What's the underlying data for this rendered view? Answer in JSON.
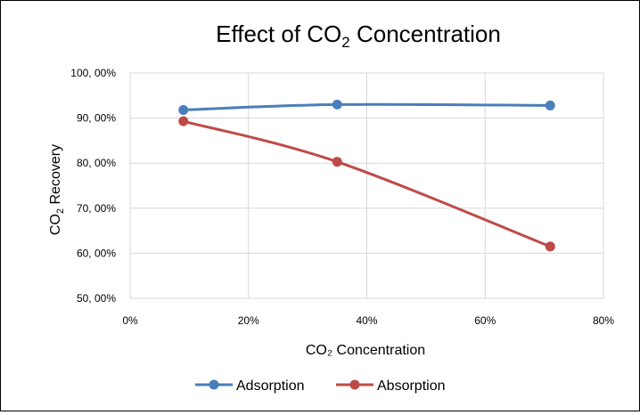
{
  "chart_data": {
    "type": "line",
    "title": "Effect of CO",
    "title_subscript": "2",
    "title_suffix": " Concentration",
    "xlabel": "CO₂ Concentration",
    "ylabel": "CO",
    "ylabel_subscript": "2",
    "ylabel_suffix": " Recovery",
    "xlim": [
      0,
      0.8
    ],
    "ylim": [
      0.5,
      1.0
    ],
    "x_ticks": [
      0,
      0.2,
      0.4,
      0.6,
      0.8
    ],
    "x_tick_labels": [
      "0%",
      "20%",
      "40%",
      "60%",
      "80%"
    ],
    "y_ticks": [
      0.5,
      0.6,
      0.7,
      0.8,
      0.9,
      1.0
    ],
    "y_tick_labels": [
      "50, 00%",
      "60, 00%",
      "70, 00%",
      "80, 00%",
      "90, 00%",
      "100, 00%"
    ],
    "grid": true,
    "legend_position": "bottom",
    "series": [
      {
        "name": "Adsorption",
        "color": "#4a7ebb",
        "x": [
          0.09,
          0.35,
          0.71
        ],
        "y": [
          0.918,
          0.93,
          0.928
        ]
      },
      {
        "name": "Absorption",
        "color": "#be4b48",
        "x": [
          0.09,
          0.35,
          0.71
        ],
        "y": [
          0.893,
          0.803,
          0.615
        ]
      }
    ]
  }
}
